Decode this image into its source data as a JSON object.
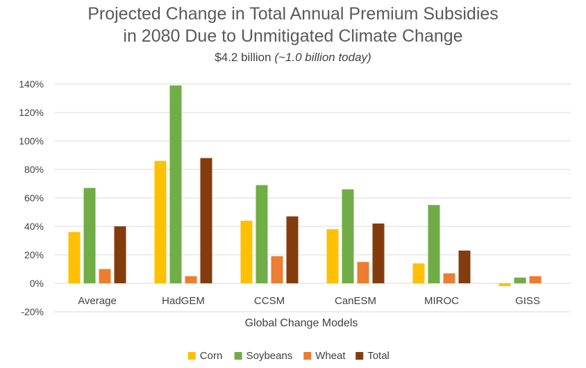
{
  "chart_data": {
    "type": "bar",
    "title_line1": "Projected Change in Total Annual Premium Subsidies",
    "title_line2": "in 2080 Due to Unmitigated Climate Change",
    "subtitle": "$4.2 billion",
    "subtitle_note": "(~1.0 billion today)",
    "xlabel": "Global Change Models",
    "ylabel": "",
    "ylim": [
      -20,
      140
    ],
    "yticks": [
      -20,
      0,
      20,
      40,
      60,
      80,
      100,
      120,
      140
    ],
    "ytick_labels": [
      "-20%",
      "0%",
      "20%",
      "40%",
      "60%",
      "80%",
      "100%",
      "120%",
      "140%"
    ],
    "grid": true,
    "legend_position": "bottom-center",
    "categories": [
      "Average",
      "HadGEM",
      "CCSM",
      "CanESM",
      "MIROC",
      "GISS"
    ],
    "series": [
      {
        "name": "Corn",
        "color": "#FFC000",
        "values": [
          36,
          86,
          44,
          38,
          14,
          -2
        ]
      },
      {
        "name": "Soybeans",
        "color": "#70AD47",
        "values": [
          67,
          139,
          69,
          66,
          55,
          4
        ]
      },
      {
        "name": "Wheat",
        "color": "#ED7D31",
        "values": [
          10,
          5,
          19,
          15,
          7,
          5
        ]
      },
      {
        "name": "Total",
        "color": "#843C0C",
        "values": [
          40,
          88,
          47,
          42,
          23,
          0
        ]
      }
    ]
  }
}
